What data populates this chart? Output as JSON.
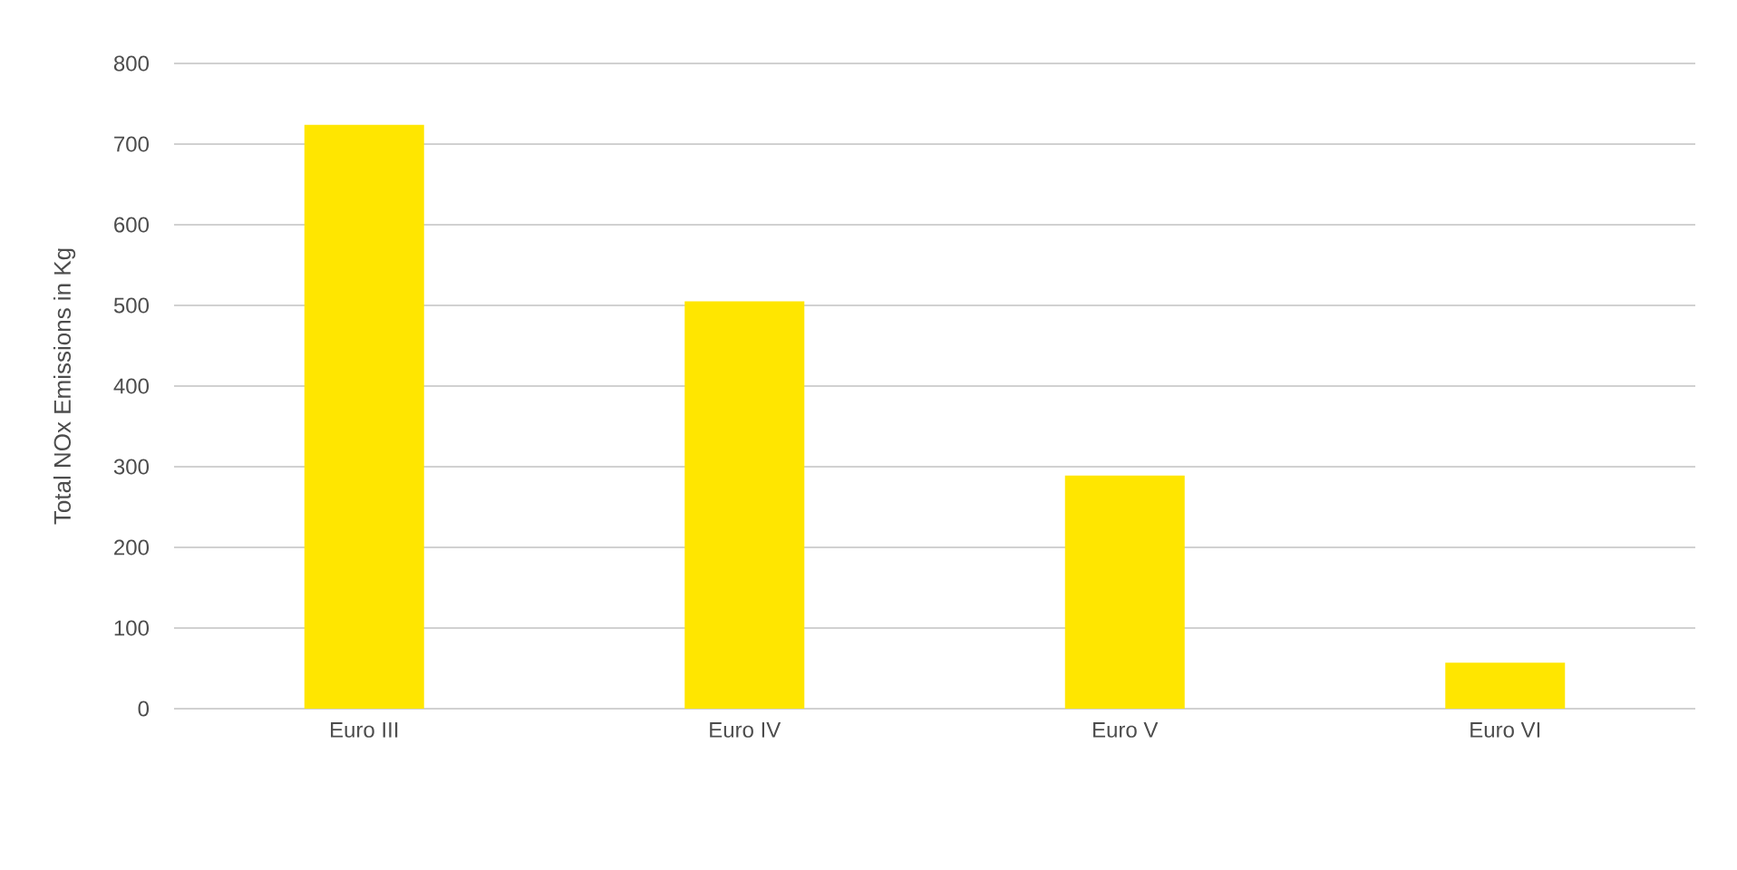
{
  "chart_data": {
    "type": "bar",
    "ylabel": "Total NOx Emissions in Kg",
    "categories": [
      "Euro III",
      "Euro IV",
      "Euro V",
      "Euro VI"
    ],
    "values": [
      724,
      505,
      289,
      57
    ],
    "color": "#ffe600",
    "ylim": [
      0,
      800
    ],
    "yticks": [
      0,
      100,
      200,
      300,
      400,
      500,
      600,
      700,
      800
    ],
    "grid": "y"
  }
}
